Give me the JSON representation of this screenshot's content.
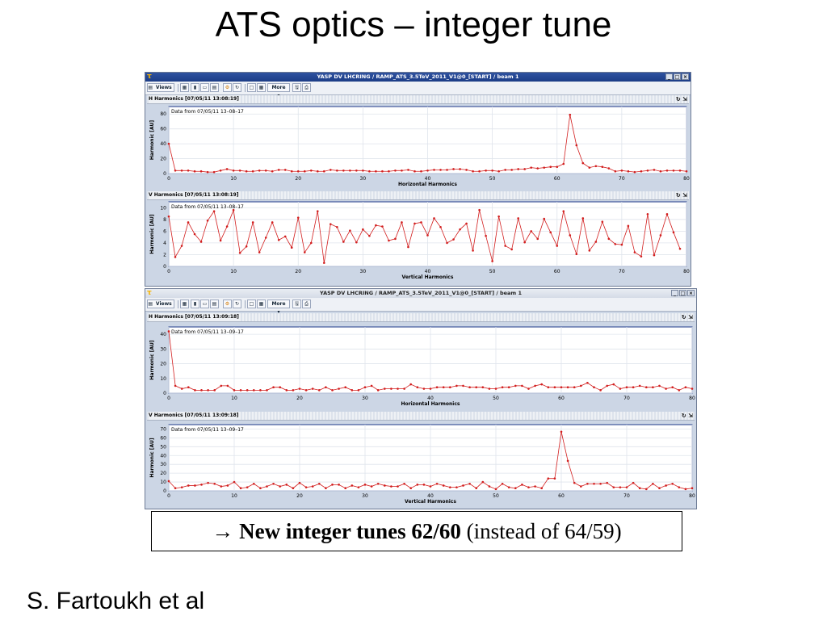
{
  "slide": {
    "title": "ATS optics – integer tune",
    "author": "S. Fartoukh et al",
    "note": {
      "arrow": "→",
      "bold": "New integer tunes 62/60",
      "rest": "(instead of 64/59)"
    }
  },
  "windows": [
    {
      "title": "YASP DV LHCRING / RAMP_ATS_3.5TeV_2011_V1@0_[START] / beam 1",
      "toolbar": {
        "views_label": "Views",
        "more_label": "More"
      },
      "panels": [
        {
          "title": "H Harmonics  [07/05/11 13:08:19]"
        },
        {
          "title": "V Harmonics  [07/05/11 13:08:19]"
        }
      ]
    },
    {
      "title": "YASP DV LHCRING / RAMP_ATS_3.5TeV_2011_V1@0_[START] / beam 1",
      "toolbar": {
        "views_label": "Views",
        "more_label": "More"
      },
      "panels": [
        {
          "title": "H Harmonics  [07/05/11 13:09:18]"
        },
        {
          "title": "V Harmonics  [07/05/11 13:09:18]"
        }
      ]
    }
  ],
  "colors": {
    "series": "#d21e1e",
    "plot_border": "#1f3a8a",
    "grid": "#dfe4ec",
    "window_bg": "#ccd6e5"
  },
  "chart_data": [
    {
      "type": "line",
      "annotation": "Data from 07/05/11 13–08–17",
      "xlabel": "Horizontal Harmonics",
      "ylabel": "Harmonic [AU]",
      "xlim": [
        0,
        80
      ],
      "ylim": [
        0,
        90
      ],
      "xticks": [
        0,
        10,
        20,
        30,
        40,
        50,
        60,
        70,
        80
      ],
      "yticks": [
        0,
        20,
        40,
        60,
        80
      ],
      "grid": true,
      "x_start": 0,
      "values": [
        40,
        4,
        4,
        4,
        3,
        3,
        2,
        2,
        4,
        6,
        4,
        4,
        3,
        3,
        4,
        4,
        3,
        5,
        5,
        3,
        3,
        3,
        4,
        3,
        3,
        5,
        4,
        4,
        4,
        4,
        4,
        3,
        3,
        3,
        3,
        4,
        4,
        5,
        3,
        3,
        4,
        5,
        5,
        5,
        6,
        6,
        5,
        3,
        3,
        4,
        4,
        3,
        5,
        5,
        6,
        6,
        8,
        7,
        8,
        9,
        9,
        13,
        79,
        38,
        14,
        8,
        10,
        9,
        7,
        3,
        4,
        3,
        2,
        3,
        4,
        5,
        3,
        4,
        4,
        4,
        3
      ]
    },
    {
      "type": "line",
      "annotation": "Data from 07/05/11 13–08–17",
      "xlabel": "Vertical Harmonics",
      "ylabel": "Harmonic [AU]",
      "xlim": [
        0,
        80
      ],
      "ylim": [
        0,
        11
      ],
      "xticks": [
        0,
        10,
        20,
        30,
        40,
        50,
        60,
        70,
        80
      ],
      "yticks": [
        0,
        2,
        4,
        6,
        8,
        10
      ],
      "grid": true,
      "x_start": 0,
      "values": [
        8.5,
        1.6,
        3.5,
        7.5,
        5.5,
        4.2,
        7.8,
        9.4,
        4.4,
        6.8,
        9.6,
        2.3,
        3.4,
        7.5,
        2.4,
        4.9,
        7.5,
        4.5,
        5.1,
        3.2,
        8.3,
        2.4,
        4.0,
        9.4,
        0.6,
        7.2,
        6.7,
        4.2,
        6.1,
        4.1,
        6.3,
        5.2,
        7.0,
        6.8,
        4.4,
        4.7,
        7.5,
        3.3,
        7.3,
        7.5,
        5.3,
        8.2,
        6.7,
        4.0,
        4.6,
        6.3,
        7.3,
        2.7,
        9.6,
        5.2,
        0.9,
        8.5,
        3.5,
        2.9,
        8.2,
        4.1,
        6.0,
        4.7,
        8.1,
        5.8,
        3.5,
        9.4,
        5.3,
        2.1,
        8.2,
        2.7,
        4.2,
        7.6,
        4.7,
        3.8,
        3.7,
        6.9,
        2.4,
        1.7,
        8.9,
        1.9,
        5.3,
        8.9,
        5.8,
        3.0
      ]
    },
    {
      "type": "line",
      "annotation": "Data from 07/05/11 13–09–17",
      "xlabel": "Horizontal Harmonics",
      "ylabel": "Harmonic [AU]",
      "xlim": [
        0,
        80
      ],
      "ylim": [
        0,
        45
      ],
      "xticks": [
        0,
        10,
        20,
        30,
        40,
        50,
        60,
        70,
        80
      ],
      "yticks": [
        0,
        10,
        20,
        30,
        40
      ],
      "grid": true,
      "x_start": 0,
      "values": [
        42,
        5,
        3,
        4,
        2,
        2,
        2,
        2,
        5,
        5,
        2,
        2,
        2,
        2,
        2,
        2,
        4,
        4,
        2,
        2,
        3,
        2,
        3,
        2,
        4,
        2,
        3,
        4,
        2,
        2,
        4,
        5,
        2,
        3,
        3,
        3,
        3,
        6,
        4,
        3,
        3,
        4,
        4,
        4,
        5,
        5,
        4,
        4,
        4,
        3,
        3,
        4,
        4,
        5,
        5,
        3,
        5,
        6,
        4,
        4,
        4,
        4,
        4,
        5,
        7,
        4,
        2,
        5,
        6,
        3,
        4,
        4,
        5,
        4,
        4,
        5,
        3,
        4,
        2,
        4,
        3
      ]
    },
    {
      "type": "line",
      "annotation": "Data from 07/05/11 13–09–17",
      "xlabel": "Vertical Harmonics",
      "ylabel": "Harmonic [AU]",
      "xlim": [
        0,
        80
      ],
      "ylim": [
        0,
        75
      ],
      "xticks": [
        0,
        10,
        20,
        30,
        40,
        50,
        60,
        70,
        80
      ],
      "yticks": [
        0,
        10,
        20,
        30,
        40,
        50,
        60,
        70
      ],
      "grid": true,
      "x_start": 0,
      "values": [
        11,
        3,
        4,
        6,
        6,
        7,
        9,
        8,
        5,
        6,
        10,
        3,
        4,
        8,
        3,
        5,
        8,
        5,
        7,
        3,
        9,
        4,
        5,
        8,
        3,
        7,
        7,
        3,
        6,
        4,
        7,
        5,
        8,
        6,
        5,
        5,
        8,
        3,
        7,
        7,
        5,
        8,
        6,
        4,
        4,
        6,
        8,
        3,
        10,
        5,
        2,
        8,
        4,
        3,
        7,
        4,
        5,
        3,
        14,
        14,
        67,
        34,
        9,
        5,
        8,
        8,
        8,
        9,
        4,
        4,
        4,
        9,
        3,
        2,
        8,
        3,
        6,
        8,
        4,
        2,
        3
      ]
    }
  ]
}
